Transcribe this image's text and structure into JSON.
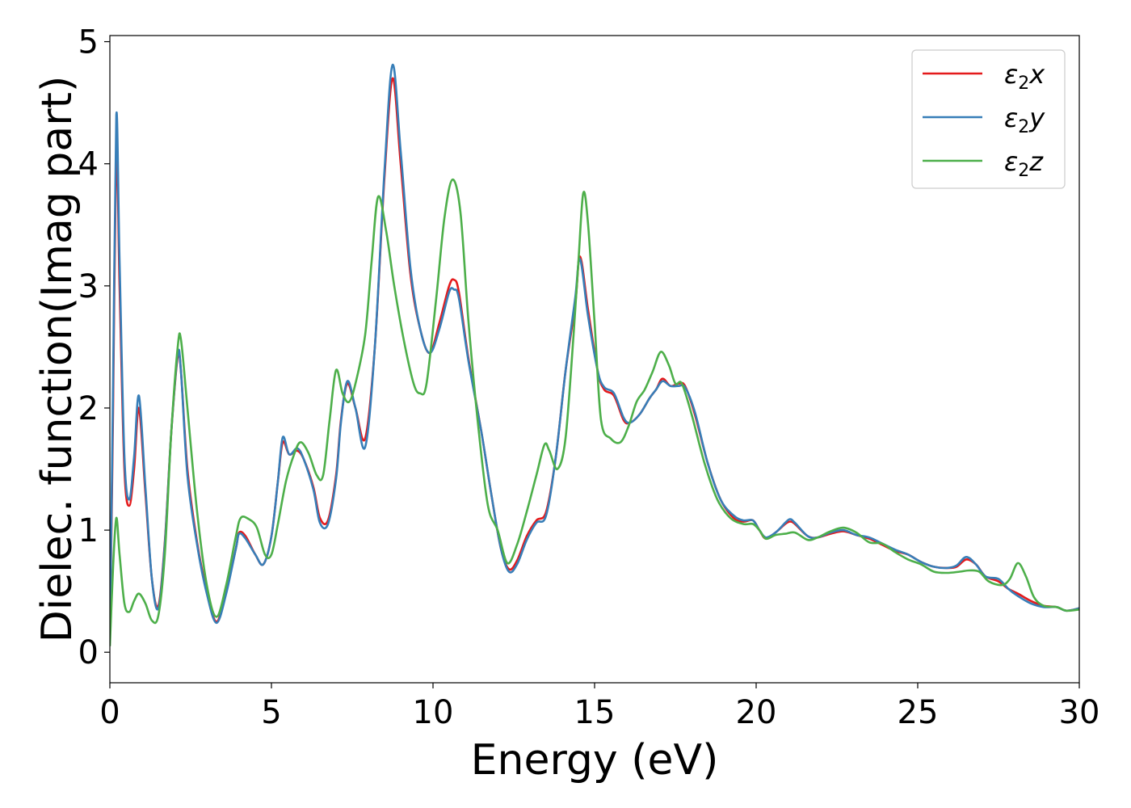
{
  "chart_data": {
    "type": "line",
    "title": "",
    "xlabel": "Energy (eV)",
    "ylabel": "Dielec. function(Imag part)",
    "xlim": [
      0,
      30
    ],
    "ylim": [
      -0.25,
      5.05
    ],
    "xticks": [
      0,
      5,
      10,
      15,
      20,
      25,
      30
    ],
    "yticks": [
      0,
      1,
      2,
      3,
      4,
      5
    ],
    "grid": false,
    "legend_position": "top-right",
    "series": [
      {
        "name": "ε₂x",
        "legend_base": "ε",
        "legend_sub": "2",
        "legend_tail": "x",
        "color": "#e41a1c",
        "x": [
          0,
          0.1,
          0.2,
          0.3,
          0.45,
          0.6,
          0.75,
          0.9,
          1.1,
          1.3,
          1.5,
          1.7,
          1.9,
          2.1,
          2.2,
          2.4,
          2.7,
          3.0,
          3.3,
          3.6,
          3.9,
          4.0,
          4.2,
          4.5,
          4.75,
          5.0,
          5.2,
          5.35,
          5.55,
          5.8,
          6.0,
          6.3,
          6.5,
          6.75,
          7.0,
          7.15,
          7.35,
          7.6,
          7.9,
          8.2,
          8.5,
          8.75,
          9.0,
          9.3,
          9.6,
          9.9,
          10.2,
          10.5,
          10.65,
          10.8,
          11.1,
          11.5,
          11.8,
          12.1,
          12.35,
          12.6,
          12.9,
          13.2,
          13.5,
          13.8,
          14.1,
          14.4,
          14.55,
          14.8,
          15.1,
          15.3,
          15.6,
          15.9,
          16.1,
          16.4,
          16.7,
          16.9,
          17.1,
          17.35,
          17.6,
          17.8,
          18.1,
          18.5,
          18.9,
          19.3,
          19.6,
          19.9,
          20.1,
          20.3,
          20.6,
          20.9,
          21.05,
          21.2,
          21.6,
          21.9,
          22.3,
          22.7,
          23.1,
          23.5,
          23.9,
          24.3,
          24.7,
          25.1,
          25.5,
          25.9,
          26.2,
          26.5,
          26.8,
          27.1,
          27.5,
          27.8,
          28.1,
          28.5,
          28.9,
          29.3,
          29.6,
          30
        ],
        "y": [
          0.1,
          2.0,
          4.2,
          3.0,
          1.5,
          1.2,
          1.5,
          2.0,
          1.3,
          0.6,
          0.38,
          0.9,
          1.8,
          2.42,
          2.3,
          1.5,
          0.9,
          0.5,
          0.25,
          0.5,
          0.85,
          0.98,
          0.95,
          0.8,
          0.72,
          0.95,
          1.4,
          1.72,
          1.62,
          1.65,
          1.58,
          1.35,
          1.1,
          1.08,
          1.45,
          1.9,
          2.2,
          2.0,
          1.75,
          2.5,
          3.9,
          4.7,
          4.0,
          3.1,
          2.65,
          2.45,
          2.7,
          3.0,
          3.05,
          2.95,
          2.4,
          1.8,
          1.3,
          0.85,
          0.68,
          0.75,
          0.95,
          1.08,
          1.15,
          1.6,
          2.3,
          2.85,
          3.24,
          2.8,
          2.3,
          2.15,
          2.1,
          1.9,
          1.88,
          1.95,
          2.08,
          2.15,
          2.24,
          2.18,
          2.2,
          2.18,
          1.95,
          1.55,
          1.25,
          1.1,
          1.07,
          1.08,
          1.0,
          0.93,
          0.98,
          1.05,
          1.07,
          1.05,
          0.95,
          0.94,
          0.97,
          0.99,
          0.96,
          0.93,
          0.88,
          0.83,
          0.8,
          0.74,
          0.7,
          0.69,
          0.7,
          0.76,
          0.72,
          0.62,
          0.58,
          0.52,
          0.48,
          0.42,
          0.38,
          0.37,
          0.34,
          0.36
        ]
      },
      {
        "name": "ε₂y",
        "legend_base": "ε",
        "legend_sub": "2",
        "legend_tail": "y",
        "color": "#377eb8",
        "x": [
          0,
          0.1,
          0.2,
          0.3,
          0.45,
          0.6,
          0.75,
          0.9,
          1.1,
          1.3,
          1.5,
          1.7,
          1.9,
          2.1,
          2.2,
          2.4,
          2.7,
          3.0,
          3.3,
          3.6,
          3.9,
          4.0,
          4.2,
          4.5,
          4.75,
          5.0,
          5.2,
          5.35,
          5.55,
          5.8,
          6.0,
          6.3,
          6.5,
          6.75,
          7.0,
          7.15,
          7.35,
          7.6,
          7.9,
          8.2,
          8.5,
          8.75,
          9.0,
          9.3,
          9.6,
          9.9,
          10.2,
          10.5,
          10.65,
          10.8,
          11.1,
          11.5,
          11.8,
          12.1,
          12.35,
          12.6,
          12.9,
          13.2,
          13.5,
          13.8,
          14.1,
          14.4,
          14.55,
          14.8,
          15.1,
          15.3,
          15.6,
          15.9,
          16.1,
          16.4,
          16.7,
          16.9,
          17.1,
          17.35,
          17.6,
          17.8,
          18.1,
          18.5,
          18.9,
          19.3,
          19.6,
          19.9,
          20.1,
          20.3,
          20.6,
          20.9,
          21.05,
          21.2,
          21.6,
          21.9,
          22.3,
          22.7,
          23.1,
          23.5,
          23.9,
          24.3,
          24.7,
          25.1,
          25.5,
          25.9,
          26.2,
          26.5,
          26.8,
          27.1,
          27.5,
          27.8,
          28.1,
          28.5,
          28.9,
          29.3,
          29.6,
          30
        ],
        "y": [
          0.1,
          2.2,
          4.4,
          3.2,
          1.6,
          1.25,
          1.6,
          2.1,
          1.35,
          0.6,
          0.36,
          0.88,
          1.8,
          2.44,
          2.3,
          1.45,
          0.88,
          0.48,
          0.24,
          0.48,
          0.85,
          0.97,
          0.93,
          0.8,
          0.72,
          0.95,
          1.4,
          1.76,
          1.62,
          1.67,
          1.58,
          1.33,
          1.06,
          1.05,
          1.42,
          1.88,
          2.22,
          2.0,
          1.68,
          2.5,
          3.95,
          4.81,
          4.1,
          3.15,
          2.65,
          2.45,
          2.65,
          2.95,
          2.97,
          2.9,
          2.38,
          1.8,
          1.3,
          0.85,
          0.66,
          0.72,
          0.92,
          1.06,
          1.12,
          1.6,
          2.3,
          2.9,
          3.22,
          2.75,
          2.3,
          2.17,
          2.12,
          1.92,
          1.88,
          1.95,
          2.08,
          2.15,
          2.22,
          2.18,
          2.18,
          2.17,
          1.97,
          1.55,
          1.25,
          1.12,
          1.08,
          1.08,
          1.0,
          0.94,
          0.98,
          1.06,
          1.09,
          1.06,
          0.95,
          0.94,
          0.98,
          1.0,
          0.96,
          0.94,
          0.89,
          0.84,
          0.8,
          0.74,
          0.7,
          0.69,
          0.71,
          0.78,
          0.72,
          0.62,
          0.6,
          0.52,
          0.46,
          0.4,
          0.37,
          0.37,
          0.34,
          0.36
        ]
      },
      {
        "name": "ε₂z",
        "legend_base": "ε",
        "legend_sub": "2",
        "legend_tail": "z",
        "color": "#4daf4a",
        "x": [
          0,
          0.1,
          0.2,
          0.3,
          0.45,
          0.6,
          0.75,
          0.9,
          1.1,
          1.3,
          1.5,
          1.7,
          1.9,
          2.1,
          2.2,
          2.4,
          2.7,
          3.0,
          3.3,
          3.6,
          3.9,
          4.05,
          4.3,
          4.55,
          4.8,
          5.0,
          5.2,
          5.45,
          5.7,
          5.9,
          6.15,
          6.4,
          6.6,
          6.8,
          7.0,
          7.2,
          7.4,
          7.6,
          7.9,
          8.1,
          8.3,
          8.55,
          8.8,
          9.1,
          9.4,
          9.6,
          9.8,
          10.1,
          10.35,
          10.6,
          10.85,
          11.1,
          11.4,
          11.7,
          12.0,
          12.3,
          12.6,
          12.9,
          13.2,
          13.45,
          13.6,
          13.85,
          14.1,
          14.35,
          14.5,
          14.65,
          14.8,
          15.0,
          15.2,
          15.5,
          15.8,
          16.05,
          16.3,
          16.55,
          16.8,
          17.05,
          17.3,
          17.5,
          17.7,
          18.0,
          18.4,
          18.8,
          19.2,
          19.6,
          19.9,
          20.1,
          20.3,
          20.6,
          20.9,
          21.2,
          21.6,
          21.9,
          22.3,
          22.7,
          23.1,
          23.5,
          23.9,
          24.3,
          24.7,
          25.1,
          25.5,
          25.9,
          26.3,
          26.6,
          26.9,
          27.2,
          27.6,
          27.85,
          28.1,
          28.35,
          28.6,
          28.9,
          29.3,
          29.6,
          30
        ],
        "y": [
          0.05,
          0.7,
          1.1,
          0.8,
          0.4,
          0.33,
          0.42,
          0.48,
          0.4,
          0.26,
          0.3,
          0.8,
          1.8,
          2.5,
          2.56,
          2.0,
          1.15,
          0.55,
          0.29,
          0.55,
          0.95,
          1.1,
          1.09,
          1.02,
          0.8,
          0.8,
          1.05,
          1.4,
          1.62,
          1.72,
          1.63,
          1.45,
          1.45,
          1.9,
          2.31,
          2.12,
          2.05,
          2.2,
          2.6,
          3.2,
          3.73,
          3.45,
          3.0,
          2.55,
          2.2,
          2.12,
          2.2,
          2.9,
          3.55,
          3.87,
          3.6,
          2.7,
          1.85,
          1.2,
          1.0,
          0.73,
          0.88,
          1.15,
          1.45,
          1.7,
          1.65,
          1.5,
          1.75,
          2.6,
          3.2,
          3.76,
          3.5,
          2.7,
          1.9,
          1.75,
          1.72,
          1.85,
          2.05,
          2.15,
          2.3,
          2.46,
          2.35,
          2.2,
          2.2,
          1.95,
          1.55,
          1.25,
          1.1,
          1.05,
          1.05,
          1.0,
          0.93,
          0.96,
          0.97,
          0.98,
          0.92,
          0.94,
          0.99,
          1.02,
          0.98,
          0.9,
          0.89,
          0.82,
          0.76,
          0.72,
          0.66,
          0.65,
          0.66,
          0.67,
          0.66,
          0.58,
          0.55,
          0.6,
          0.73,
          0.62,
          0.45,
          0.38,
          0.37,
          0.34,
          0.35
        ]
      }
    ]
  }
}
